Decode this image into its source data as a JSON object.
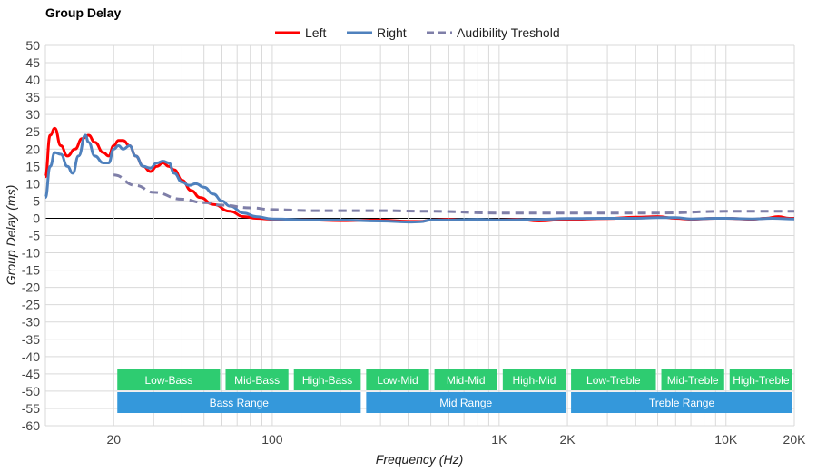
{
  "chart_data": {
    "type": "line",
    "title": "Group Delay",
    "xlabel": "Frequency (Hz)",
    "ylabel": "Group Delay (ms)",
    "x_scale": "log",
    "xlim": [
      10,
      20000
    ],
    "ylim": [
      -60,
      50
    ],
    "y_ticks": [
      50,
      45,
      40,
      35,
      30,
      25,
      20,
      15,
      10,
      5,
      0,
      -5,
      -10,
      -15,
      -20,
      -25,
      -30,
      -35,
      -40,
      -45,
      -50,
      -55,
      -60
    ],
    "x_ticks": [
      {
        "value": 20,
        "label": "20"
      },
      {
        "value": 100,
        "label": "100"
      },
      {
        "value": 1000,
        "label": "1K"
      },
      {
        "value": 2000,
        "label": "2K"
      },
      {
        "value": 10000,
        "label": "10K"
      },
      {
        "value": 20000,
        "label": "20K"
      }
    ],
    "grid": true,
    "legend_position": "top-center",
    "series": [
      {
        "name": "Left",
        "color": "#ff0000",
        "dashed": false,
        "points": [
          [
            10,
            12
          ],
          [
            10.5,
            24
          ],
          [
            11,
            26
          ],
          [
            11.7,
            21
          ],
          [
            12.5,
            18
          ],
          [
            13.5,
            20
          ],
          [
            14.5,
            23
          ],
          [
            15.5,
            24
          ],
          [
            16.5,
            22
          ],
          [
            18,
            19
          ],
          [
            19,
            18
          ],
          [
            20,
            21
          ],
          [
            21,
            22.5
          ],
          [
            22,
            22.5
          ],
          [
            23.5,
            21
          ],
          [
            25,
            18
          ],
          [
            27,
            15
          ],
          [
            29,
            13.5
          ],
          [
            31,
            15
          ],
          [
            33,
            16
          ],
          [
            35,
            15
          ],
          [
            37,
            14
          ],
          [
            40,
            11
          ],
          [
            44,
            8
          ],
          [
            48,
            6
          ],
          [
            55,
            4
          ],
          [
            65,
            2
          ],
          [
            75,
            0.5
          ],
          [
            85,
            0
          ],
          [
            100,
            -0.3
          ],
          [
            150,
            -0.5
          ],
          [
            200,
            -0.7
          ],
          [
            300,
            -0.5
          ],
          [
            400,
            -0.9
          ],
          [
            450,
            -0.9
          ],
          [
            500,
            -0.5
          ],
          [
            600,
            -0.3
          ],
          [
            700,
            -0.5
          ],
          [
            1000,
            -0.5
          ],
          [
            1200,
            -0.3
          ],
          [
            1500,
            -0.8
          ],
          [
            2000,
            -0.3
          ],
          [
            3000,
            -0.1
          ],
          [
            4000,
            0.3
          ],
          [
            5000,
            0.5
          ],
          [
            6000,
            0
          ],
          [
            7000,
            -0.3
          ],
          [
            9000,
            0
          ],
          [
            10000,
            0
          ],
          [
            13000,
            -0.3
          ],
          [
            15000,
            0
          ],
          [
            17000,
            0.5
          ],
          [
            19000,
            0
          ],
          [
            20000,
            0
          ]
        ]
      },
      {
        "name": "Right",
        "color": "#4f81bd",
        "dashed": false,
        "points": [
          [
            10,
            6
          ],
          [
            10.5,
            15
          ],
          [
            11,
            19
          ],
          [
            11.7,
            18.5
          ],
          [
            12.5,
            15
          ],
          [
            13.2,
            13
          ],
          [
            14,
            18
          ],
          [
            15,
            24
          ],
          [
            15.5,
            22
          ],
          [
            16.5,
            18
          ],
          [
            18,
            16
          ],
          [
            19,
            16
          ],
          [
            20,
            20
          ],
          [
            21,
            21
          ],
          [
            22,
            20
          ],
          [
            23.5,
            21
          ],
          [
            25,
            18
          ],
          [
            27,
            15
          ],
          [
            29,
            14.5
          ],
          [
            31,
            16
          ],
          [
            33,
            16.5
          ],
          [
            35,
            16
          ],
          [
            37,
            13
          ],
          [
            40,
            10.5
          ],
          [
            43,
            9.5
          ],
          [
            46,
            10
          ],
          [
            50,
            9
          ],
          [
            55,
            7
          ],
          [
            60,
            5
          ],
          [
            65,
            3.5
          ],
          [
            75,
            1.5
          ],
          [
            85,
            0.5
          ],
          [
            100,
            -0.2
          ],
          [
            150,
            -0.5
          ],
          [
            200,
            -0.5
          ],
          [
            300,
            -0.8
          ],
          [
            400,
            -1.1
          ],
          [
            450,
            -1
          ],
          [
            500,
            -0.5
          ],
          [
            600,
            -0.5
          ],
          [
            800,
            -0.3
          ],
          [
            1000,
            -0.5
          ],
          [
            1500,
            -0.3
          ],
          [
            2000,
            -0.1
          ],
          [
            3000,
            0
          ],
          [
            4000,
            0
          ],
          [
            5000,
            0.2
          ],
          [
            6000,
            0.2
          ],
          [
            7000,
            -0.2
          ],
          [
            9000,
            0
          ],
          [
            10000,
            0
          ],
          [
            13000,
            -0.2
          ],
          [
            16000,
            0
          ],
          [
            20000,
            -0.2
          ]
        ]
      },
      {
        "name": "Audibility Treshold",
        "color": "#7f7fa8",
        "dashed": true,
        "points": [
          [
            20,
            12.5
          ],
          [
            25,
            9.5
          ],
          [
            30,
            7.5
          ],
          [
            40,
            5.5
          ],
          [
            50,
            4.5
          ],
          [
            60,
            3.8
          ],
          [
            80,
            3
          ],
          [
            100,
            2.5
          ],
          [
            150,
            2.2
          ],
          [
            200,
            2.2
          ],
          [
            300,
            2.2
          ],
          [
            500,
            2
          ],
          [
            1000,
            1.5
          ],
          [
            2000,
            1.5
          ],
          [
            5000,
            1.5
          ],
          [
            10000,
            2
          ],
          [
            20000,
            2
          ]
        ]
      }
    ],
    "range_bands": [
      {
        "label": "Low-Bass",
        "row": 1,
        "from": 20,
        "to": 60,
        "color": "#2ecc71"
      },
      {
        "label": "Mid-Bass",
        "row": 1,
        "from": 60,
        "to": 120,
        "color": "#2ecc71"
      },
      {
        "label": "High-Bass",
        "row": 1,
        "from": 120,
        "to": 250,
        "color": "#2ecc71"
      },
      {
        "label": "Low-Mid",
        "row": 1,
        "from": 250,
        "to": 500,
        "color": "#2ecc71"
      },
      {
        "label": "Mid-Mid",
        "row": 1,
        "from": 500,
        "to": 1000,
        "color": "#2ecc71"
      },
      {
        "label": "High-Mid",
        "row": 1,
        "from": 1000,
        "to": 2000,
        "color": "#2ecc71"
      },
      {
        "label": "Low-Treble",
        "row": 1,
        "from": 2000,
        "to": 5000,
        "color": "#2ecc71"
      },
      {
        "label": "Mid-Treble",
        "row": 1,
        "from": 5000,
        "to": 10000,
        "color": "#2ecc71"
      },
      {
        "label": "High-Treble",
        "row": 1,
        "from": 10000,
        "to": 20000,
        "color": "#2ecc71"
      },
      {
        "label": "Bass Range",
        "row": 2,
        "from": 20,
        "to": 250,
        "color": "#3498db"
      },
      {
        "label": "Mid Range",
        "row": 2,
        "from": 250,
        "to": 2000,
        "color": "#3498db"
      },
      {
        "label": "Treble Range",
        "row": 2,
        "from": 2000,
        "to": 20000,
        "color": "#3498db"
      }
    ]
  }
}
